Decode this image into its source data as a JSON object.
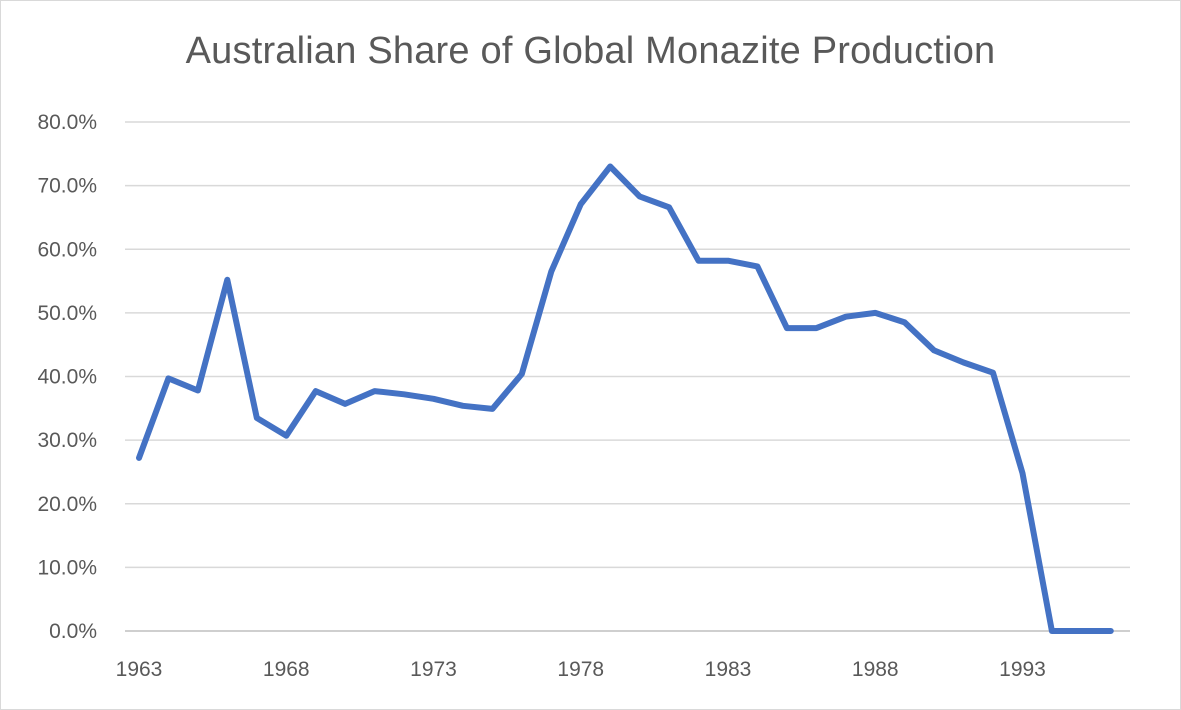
{
  "chart_data": {
    "type": "line",
    "title": "Australian Share of Global Monazite Production",
    "xlabel": "",
    "ylabel": "",
    "x": [
      1963,
      1964,
      1965,
      1966,
      1967,
      1968,
      1969,
      1970,
      1971,
      1972,
      1973,
      1974,
      1975,
      1976,
      1977,
      1978,
      1979,
      1980,
      1981,
      1982,
      1983,
      1984,
      1985,
      1986,
      1987,
      1988,
      1989,
      1990,
      1991,
      1992,
      1993,
      1994,
      1995,
      1996
    ],
    "series": [
      {
        "values": [
          27.2,
          39.7,
          37.8,
          55.2,
          33.5,
          30.7,
          37.7,
          35.7,
          37.7,
          37.2,
          36.5,
          35.4,
          34.9,
          40.4,
          56.5,
          67.1,
          73.0,
          68.3,
          66.6,
          58.2,
          58.2,
          57.3,
          47.6,
          47.6,
          49.4,
          50.0,
          48.5,
          44.1,
          42.2,
          40.6,
          24.8,
          0.0,
          0.0,
          0.0
        ],
        "color": "#4472c4"
      }
    ],
    "ylim": [
      0,
      80
    ],
    "y_ticks": [
      "0.0%",
      "10.0%",
      "20.0%",
      "30.0%",
      "40.0%",
      "50.0%",
      "60.0%",
      "70.0%",
      "80.0%"
    ],
    "x_ticks": [
      "1963",
      "1968",
      "1973",
      "1978",
      "1983",
      "1988",
      "1993"
    ],
    "grid": true,
    "legend": "none"
  }
}
